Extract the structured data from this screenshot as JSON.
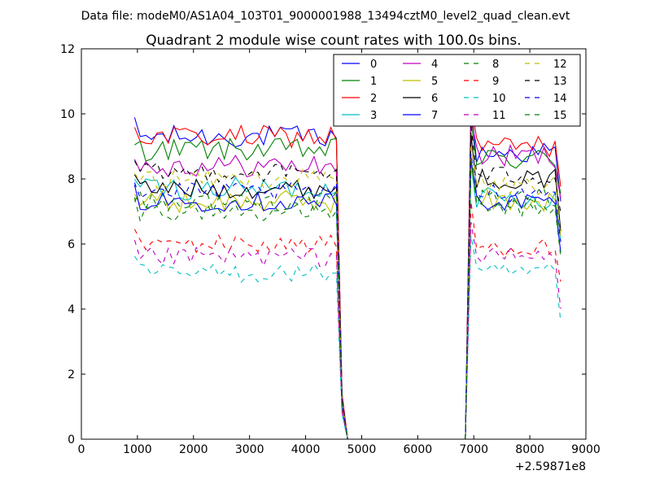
{
  "suptitle": "Data file: modeM0/AS1A04_103T01_9000001988_13494cztM0_level2_quad_clean.evt",
  "chart_data": {
    "type": "line",
    "title": "Quadrant 2 module wise count rates with 100.0s bins.",
    "xlabel": "",
    "ylabel": "",
    "x_offset_label": "+2.59871e8",
    "xlim": [
      0,
      9000
    ],
    "ylim": [
      0,
      12
    ],
    "xticks": [
      0,
      1000,
      2000,
      3000,
      4000,
      5000,
      6000,
      7000,
      8000,
      9000
    ],
    "yticks": [
      0,
      2,
      4,
      6,
      8,
      10,
      12
    ],
    "legend_position": "top-right",
    "bins": {
      "block1": {
        "start": 950,
        "step": 100,
        "count": 37
      },
      "gap": {
        "x": [
          4650,
          4750,
          6850,
          6950
        ]
      },
      "block2": {
        "start": 6950,
        "step": 100,
        "count": 17
      }
    },
    "series": [
      {
        "name": "0",
        "color": "#0000ff",
        "dash": "solid",
        "level1": 9.3,
        "level2": 8.8,
        "noise": 0.35
      },
      {
        "name": "1",
        "color": "#008000",
        "dash": "solid",
        "level1": 8.9,
        "level2": 8.6,
        "noise": 0.35
      },
      {
        "name": "2",
        "color": "#ff0000",
        "dash": "solid",
        "level1": 9.3,
        "level2": 9.0,
        "noise": 0.35
      },
      {
        "name": "3",
        "color": "#00bfbf",
        "dash": "solid",
        "level1": 7.7,
        "level2": 7.4,
        "noise": 0.35
      },
      {
        "name": "4",
        "color": "#bf00bf",
        "dash": "solid",
        "level1": 8.4,
        "level2": 8.7,
        "noise": 0.35
      },
      {
        "name": "5",
        "color": "#bfbf00",
        "dash": "solid",
        "level1": 7.3,
        "level2": 7.3,
        "noise": 0.35
      },
      {
        "name": "6",
        "color": "#000000",
        "dash": "solid",
        "level1": 7.7,
        "level2": 8.0,
        "noise": 0.3
      },
      {
        "name": "7",
        "color": "#0000ff",
        "dash": "solid",
        "level1": 7.3,
        "level2": 7.3,
        "noise": 0.3
      },
      {
        "name": "8",
        "color": "#008000",
        "dash": "dashed",
        "level1": 7.0,
        "level2": 7.1,
        "noise": 0.3
      },
      {
        "name": "9",
        "color": "#ff0000",
        "dash": "dashed",
        "level1": 6.0,
        "level2": 5.9,
        "noise": 0.3
      },
      {
        "name": "10",
        "color": "#00bfbf",
        "dash": "dashed",
        "level1": 5.1,
        "level2": 5.1,
        "noise": 0.3
      },
      {
        "name": "11",
        "color": "#bf00bf",
        "dash": "dashed",
        "level1": 5.6,
        "level2": 5.6,
        "noise": 0.3
      },
      {
        "name": "12",
        "color": "#bfbf00",
        "dash": "dashed",
        "level1": 8.0,
        "level2": 7.8,
        "noise": 0.3
      },
      {
        "name": "13",
        "color": "#000000",
        "dash": "dashed",
        "level1": 8.2,
        "level2": 8.1,
        "noise": 0.3
      },
      {
        "name": "14",
        "color": "#0000ff",
        "dash": "dashed",
        "level1": 7.6,
        "level2": 7.6,
        "noise": 0.3
      },
      {
        "name": "15",
        "color": "#008000",
        "dash": "dashed",
        "level1": 7.3,
        "level2": 7.4,
        "noise": 0.3
      }
    ]
  }
}
